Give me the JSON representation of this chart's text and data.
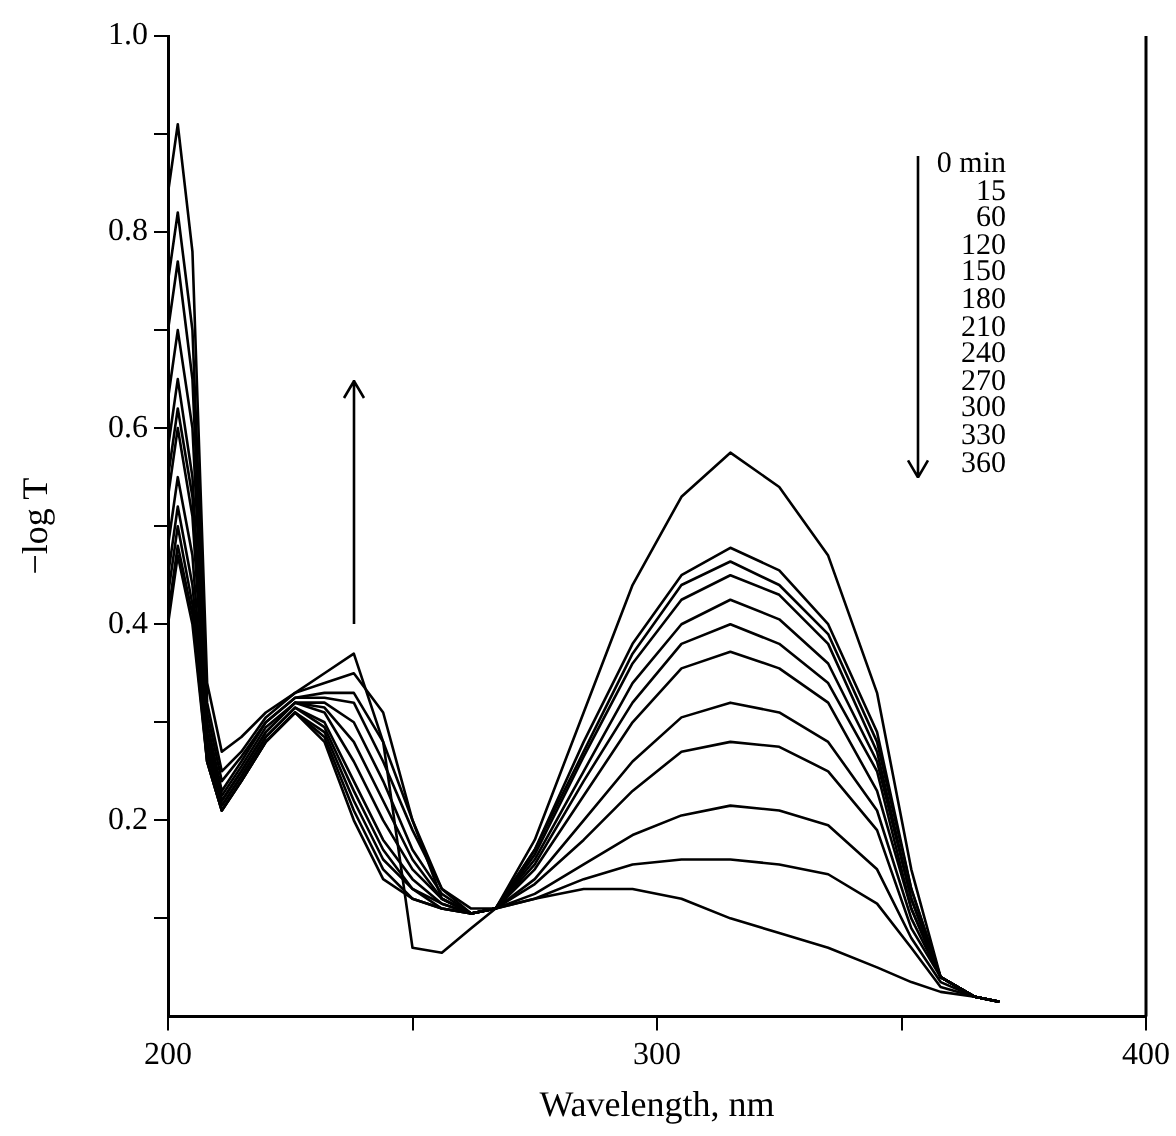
{
  "chart_data": {
    "type": "line",
    "xlabel": "Wavelength, nm",
    "ylabel": "−log T",
    "x": [
      200,
      202,
      205,
      208,
      211,
      215,
      220,
      226,
      232,
      238,
      244,
      250,
      256,
      262,
      267,
      275,
      285,
      295,
      305,
      315,
      325,
      335,
      345,
      352,
      358,
      365,
      370
    ],
    "xlim": [
      200,
      400
    ],
    "xticks": [
      200,
      {
        "value": 250,
        "label": null
      },
      300,
      {
        "value": 350,
        "label": null
      },
      400
    ],
    "ylim": [
      0,
      1
    ],
    "yticks": [
      {
        "value": 0.1,
        "label": null
      },
      0.2,
      {
        "value": 0.3,
        "label": null
      },
      0.4,
      {
        "value": 0.5,
        "label": null
      },
      0.6,
      {
        "value": 0.7,
        "label": null
      },
      0.8,
      {
        "value": 0.9,
        "label": null
      },
      {
        "value": 1,
        "label": "1.0"
      }
    ],
    "grid": false,
    "marker": "none",
    "line_style": "solid",
    "annotations": [
      "0 min",
      "15",
      "60",
      "120",
      "150",
      "180",
      "210",
      "240",
      "270",
      "300",
      "330",
      "360"
    ],
    "series": [
      {
        "color": "#000000",
        "values": [
          0.4,
          0.47,
          0.4,
          0.26,
          0.21,
          0.24,
          0.28,
          0.31,
          0.28,
          0.2,
          0.14,
          0.12,
          0.11,
          0.105,
          0.11,
          0.18,
          0.31,
          0.44,
          0.53,
          0.575,
          0.54,
          0.47,
          0.33,
          0.15,
          0.04,
          0.02,
          0.015
        ]
      },
      {
        "color": "#000000",
        "values": [
          0.41,
          0.48,
          0.41,
          0.26,
          0.21,
          0.24,
          0.28,
          0.31,
          0.285,
          0.21,
          0.15,
          0.12,
          0.11,
          0.105,
          0.11,
          0.17,
          0.28,
          0.38,
          0.45,
          0.478,
          0.455,
          0.4,
          0.29,
          0.13,
          0.04,
          0.02,
          0.015
        ]
      },
      {
        "color": "#000000",
        "values": [
          0.43,
          0.5,
          0.42,
          0.26,
          0.21,
          0.24,
          0.28,
          0.31,
          0.29,
          0.22,
          0.16,
          0.13,
          0.11,
          0.105,
          0.11,
          0.17,
          0.27,
          0.37,
          0.44,
          0.464,
          0.44,
          0.39,
          0.28,
          0.13,
          0.04,
          0.02,
          0.015
        ]
      },
      {
        "color": "#000000",
        "values": [
          0.45,
          0.52,
          0.44,
          0.27,
          0.215,
          0.245,
          0.285,
          0.315,
          0.295,
          0.23,
          0.17,
          0.13,
          0.115,
          0.105,
          0.11,
          0.165,
          0.265,
          0.36,
          0.425,
          0.45,
          0.43,
          0.38,
          0.27,
          0.12,
          0.04,
          0.02,
          0.015
        ]
      },
      {
        "color": "#000000",
        "values": [
          0.48,
          0.55,
          0.47,
          0.27,
          0.215,
          0.245,
          0.285,
          0.315,
          0.3,
          0.24,
          0.18,
          0.14,
          0.115,
          0.105,
          0.11,
          0.16,
          0.25,
          0.34,
          0.4,
          0.425,
          0.405,
          0.36,
          0.26,
          0.12,
          0.04,
          0.02,
          0.015
        ]
      },
      {
        "color": "#000000",
        "values": [
          0.53,
          0.6,
          0.51,
          0.28,
          0.22,
          0.25,
          0.29,
          0.32,
          0.31,
          0.26,
          0.2,
          0.15,
          0.12,
          0.105,
          0.11,
          0.155,
          0.24,
          0.32,
          0.38,
          0.4,
          0.38,
          0.34,
          0.25,
          0.11,
          0.04,
          0.02,
          0.015
        ]
      },
      {
        "color": "#000000",
        "values": [
          0.55,
          0.62,
          0.53,
          0.28,
          0.22,
          0.25,
          0.29,
          0.32,
          0.315,
          0.28,
          0.22,
          0.16,
          0.12,
          0.105,
          0.11,
          0.15,
          0.225,
          0.3,
          0.355,
          0.372,
          0.355,
          0.32,
          0.23,
          0.11,
          0.04,
          0.02,
          0.015
        ]
      },
      {
        "color": "#000000",
        "values": [
          0.58,
          0.65,
          0.55,
          0.29,
          0.225,
          0.255,
          0.295,
          0.32,
          0.32,
          0.3,
          0.24,
          0.17,
          0.125,
          0.105,
          0.11,
          0.14,
          0.2,
          0.26,
          0.305,
          0.32,
          0.31,
          0.28,
          0.21,
          0.1,
          0.04,
          0.02,
          0.015
        ]
      },
      {
        "color": "#000000",
        "values": [
          0.63,
          0.7,
          0.6,
          0.3,
          0.23,
          0.26,
          0.3,
          0.325,
          0.325,
          0.32,
          0.26,
          0.19,
          0.13,
          0.105,
          0.11,
          0.135,
          0.18,
          0.23,
          0.27,
          0.28,
          0.275,
          0.25,
          0.19,
          0.09,
          0.04,
          0.02,
          0.015
        ]
      },
      {
        "color": "#000000",
        "values": [
          0.7,
          0.77,
          0.65,
          0.31,
          0.24,
          0.265,
          0.3,
          0.325,
          0.33,
          0.33,
          0.28,
          0.2,
          0.13,
          0.11,
          0.11,
          0.125,
          0.155,
          0.185,
          0.205,
          0.215,
          0.21,
          0.195,
          0.15,
          0.08,
          0.035,
          0.02,
          0.015
        ]
      },
      {
        "color": "#000000",
        "values": [
          0.75,
          0.82,
          0.7,
          0.32,
          0.25,
          0.27,
          0.305,
          0.33,
          0.34,
          0.35,
          0.31,
          0.2,
          0.12,
          0.105,
          0.11,
          0.12,
          0.14,
          0.155,
          0.16,
          0.16,
          0.155,
          0.145,
          0.115,
          0.07,
          0.03,
          0.02,
          0.015
        ]
      },
      {
        "color": "#000000",
        "values": [
          0.84,
          0.91,
          0.78,
          0.34,
          0.27,
          0.285,
          0.31,
          0.33,
          0.35,
          0.37,
          0.28,
          0.07,
          0.065,
          0.09,
          0.11,
          0.12,
          0.13,
          0.13,
          0.12,
          0.1,
          0.085,
          0.07,
          0.05,
          0.035,
          0.025,
          0.02,
          0.015
        ]
      }
    ]
  }
}
